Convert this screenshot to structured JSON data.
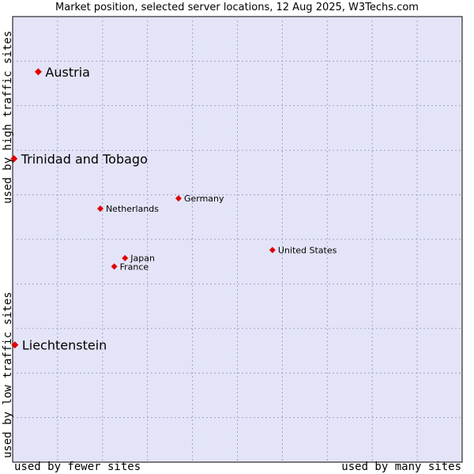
{
  "chart_data": {
    "type": "scatter",
    "title": "Market position, selected server locations, 12 Aug 2025, W3Techs.com",
    "xlabel_left": "used by fewer sites",
    "xlabel_right": "used by many sites",
    "ylabel_top": "used by high traffic sites",
    "ylabel_bottom": "used by low traffic sites",
    "xlim": [
      0,
      100
    ],
    "ylim": [
      0,
      100
    ],
    "grid": true,
    "colors": {
      "plot_bg": "#e4e4f8",
      "grid": "#a0a0c8",
      "marker": "#e00000",
      "frame": "#000000"
    },
    "points": [
      {
        "name": "Austria",
        "x": 5.7,
        "y": 87.6,
        "size": "large"
      },
      {
        "name": "Trinidad and Tobago",
        "x": 0.3,
        "y": 68.1,
        "size": "large"
      },
      {
        "name": "Germany",
        "x": 36.9,
        "y": 59.2,
        "size": "small"
      },
      {
        "name": "Netherlands",
        "x": 19.5,
        "y": 56.9,
        "size": "small"
      },
      {
        "name": "United States",
        "x": 57.8,
        "y": 47.6,
        "size": "small"
      },
      {
        "name": "Japan",
        "x": 25.0,
        "y": 45.8,
        "size": "small"
      },
      {
        "name": "France",
        "x": 22.6,
        "y": 43.9,
        "size": "small"
      },
      {
        "name": "Liechtenstein",
        "x": 0.5,
        "y": 26.3,
        "size": "large"
      }
    ]
  }
}
